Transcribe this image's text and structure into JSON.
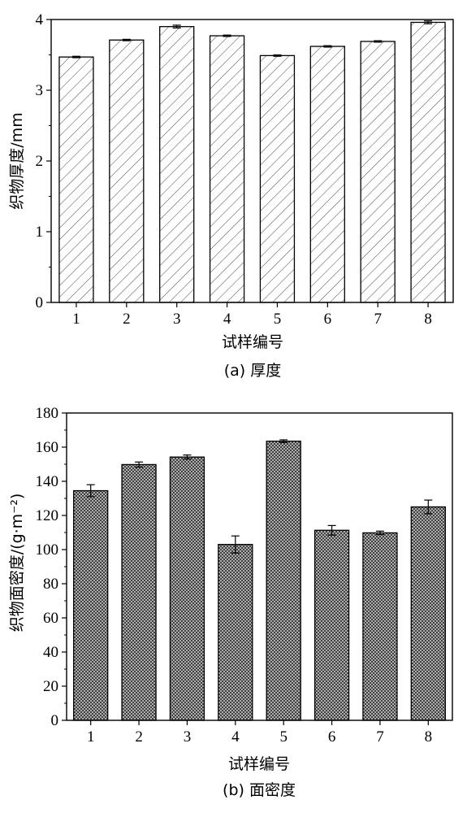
{
  "chart_data": [
    {
      "type": "bar",
      "caption": "(a) 厚度",
      "xlabel": "试样编号",
      "ylabel": "织物厚度/mm",
      "categories": [
        "1",
        "2",
        "3",
        "4",
        "5",
        "6",
        "7",
        "8"
      ],
      "values": [
        3.47,
        3.71,
        3.9,
        3.77,
        3.49,
        3.62,
        3.69,
        3.96
      ],
      "errors": [
        0.01,
        0.01,
        0.02,
        0.01,
        0.01,
        0.01,
        0.01,
        0.02
      ],
      "ylim": [
        0,
        4
      ],
      "yticks": [
        "0",
        "1",
        "2",
        "3",
        "4"
      ],
      "pattern": "diagonal-hatch"
    },
    {
      "type": "bar",
      "caption": "(b) 面密度",
      "xlabel": "试样编号",
      "ylabel": "织物面密度/(g·m⁻²)",
      "categories": [
        "1",
        "2",
        "3",
        "4",
        "5",
        "6",
        "7",
        "8"
      ],
      "values": [
        134.5,
        149.8,
        154.2,
        103.0,
        163.5,
        111.3,
        109.8,
        125.0
      ],
      "errors": [
        3.5,
        1.5,
        1.2,
        5.0,
        0.8,
        2.8,
        1.0,
        4.0
      ],
      "ylim": [
        0,
        180
      ],
      "yticks": [
        "0",
        "20",
        "40",
        "60",
        "80",
        "100",
        "120",
        "140",
        "160",
        "180"
      ],
      "pattern": "crosshatch-dense"
    }
  ]
}
